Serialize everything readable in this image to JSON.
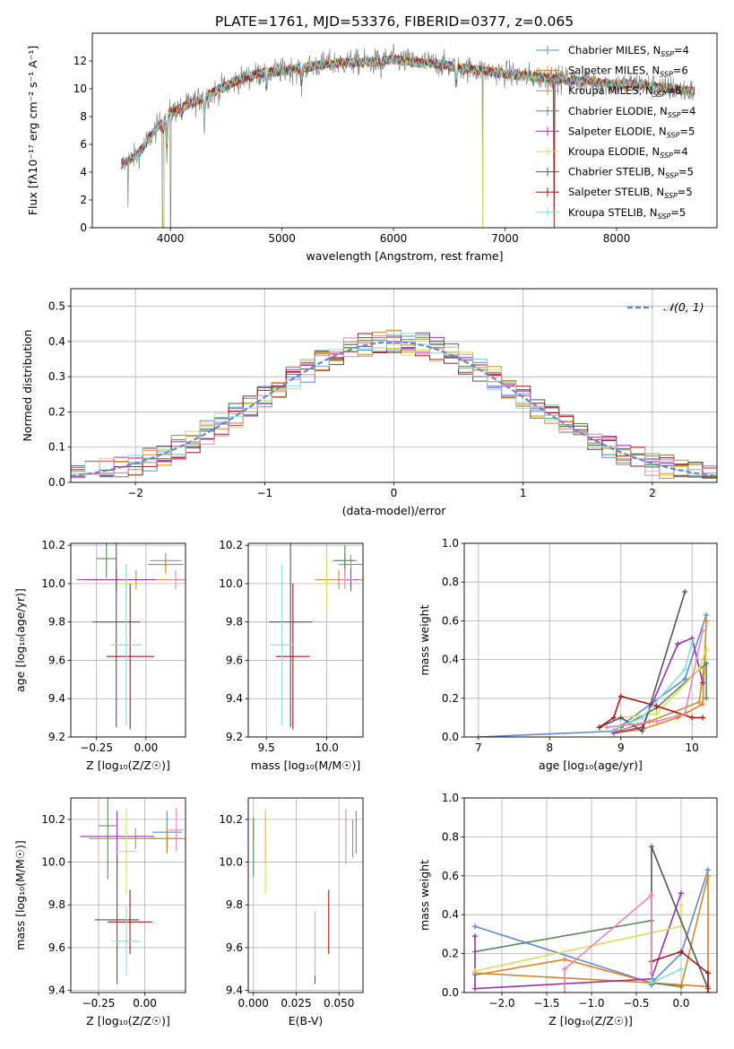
{
  "figure": {
    "title": "PLATE=1761, MJD=53376, FIBERID=0377, z=0.065"
  },
  "model_colors": {
    "Chabrier MILES": "#5b8bd6",
    "Salpeter MILES": "#e87e1c",
    "Kroupa MILES": "#d08a2a",
    "Chabrier ELODIE": "#5a8a5a",
    "Salpeter ELODIE": "#9b30b0",
    "Kroupa ELODIE": "#d4e050",
    "Chabrier STELIB": "#555555",
    "Salpeter STELIB": "#b01515",
    "Kroupa STELIB": "#80dfe0",
    "extra_pink": "#ee82b4"
  },
  "chart_data": [
    {
      "id": "spectrum",
      "type": "line",
      "xlabel": "wavelength [Angstrom, rest frame]",
      "ylabel": "Flux [fλ10⁻¹⁷ erg cm⁻² s⁻¹ A⁻¹]",
      "xlim": [
        3300,
        8900
      ],
      "ylim": [
        0,
        14
      ],
      "x_ticks": [
        4000,
        5000,
        6000,
        7000,
        8000
      ],
      "y_ticks": [
        0,
        2,
        4,
        6,
        8,
        10,
        12
      ],
      "grid": false,
      "legend_position": "top-right",
      "legend": [
        {
          "label": "Chabrier MILES, N",
          "sub": "SSP",
          "tail": "=4",
          "color": "#5b8bd6"
        },
        {
          "label": "Salpeter MILES, N",
          "sub": "SSP",
          "tail": "=6",
          "color": "#e87e1c"
        },
        {
          "label": "Kroupa MILES, N",
          "sub": "SSP",
          "tail": "=6",
          "color": "#d08a2a"
        },
        {
          "label": "Chabrier ELODIE, N",
          "sub": "SSP",
          "tail": "=4",
          "color": "#5a8a5a"
        },
        {
          "label": "Salpeter ELODIE, N",
          "sub": "SSP",
          "tail": "=5",
          "color": "#9b30b0"
        },
        {
          "label": "Kroupa ELODIE, N",
          "sub": "SSP",
          "tail": "=4",
          "color": "#d4e050"
        },
        {
          "label": "Chabrier STELIB, N",
          "sub": "SSP",
          "tail": "=5",
          "color": "#555555"
        },
        {
          "label": "Salpeter STELIB, N",
          "sub": "SSP",
          "tail": "=5",
          "color": "#b01515"
        },
        {
          "label": "Kroupa STELIB, N",
          "sub": "SSP",
          "tail": "=5",
          "color": "#80dfe0"
        }
      ],
      "continuum": [
        [
          3560,
          4.5
        ],
        [
          3700,
          5.2
        ],
        [
          3800,
          6.3
        ],
        [
          3900,
          7.4
        ],
        [
          4000,
          8.3
        ],
        [
          4200,
          9.0
        ],
        [
          4400,
          9.8
        ],
        [
          4600,
          10.6
        ],
        [
          4800,
          11.1
        ],
        [
          5000,
          11.3
        ],
        [
          5200,
          11.5
        ],
        [
          5400,
          11.8
        ],
        [
          5600,
          11.9
        ],
        [
          5800,
          11.9
        ],
        [
          6000,
          12.1
        ],
        [
          6200,
          11.9
        ],
        [
          6400,
          11.8
        ],
        [
          6600,
          11.5
        ],
        [
          6800,
          11.3
        ],
        [
          7000,
          11.1
        ],
        [
          7200,
          10.9
        ],
        [
          7400,
          10.8
        ],
        [
          7600,
          10.6
        ],
        [
          7800,
          10.5
        ],
        [
          8000,
          10.3
        ],
        [
          8200,
          10.3
        ],
        [
          8400,
          10.1
        ],
        [
          8600,
          9.9
        ],
        [
          8700,
          9.8
        ]
      ],
      "data_noise": 1.1,
      "model_noise": 0.35,
      "absorption_dips": [
        [
          3934,
          1.5
        ],
        [
          3969,
          3.2
        ],
        [
          4102,
          1.0
        ],
        [
          4305,
          2.3
        ],
        [
          4861,
          1.8
        ],
        [
          5175,
          1.5
        ],
        [
          5890,
          1.0
        ],
        [
          6563,
          1.5
        ]
      ],
      "spikes": [
        [
          3620,
          1.5
        ],
        [
          3930,
          0
        ],
        [
          4002,
          0
        ],
        [
          6800,
          0
        ],
        [
          7440,
          0
        ]
      ]
    },
    {
      "id": "residuals",
      "type": "histogram",
      "xlabel": "(data-model)/error",
      "ylabel": "Normed distribution",
      "xlim": [
        -2.5,
        2.5
      ],
      "ylim": [
        0,
        0.55
      ],
      "x_ticks": [
        -2,
        -1,
        0,
        1,
        2
      ],
      "y_ticks": [
        0.0,
        0.1,
        0.2,
        0.3,
        0.4,
        0.5
      ],
      "grid": true,
      "bin_width": 0.1111,
      "bin_start": -2.5,
      "gaussian_label": "𝒩(0, 1)",
      "gaussian_color": "#5b8bd6",
      "legend_position": "top-right"
    },
    {
      "id": "age-vs-Z",
      "type": "scatter",
      "xlabel": "Z [log₁₀(Z/Z☉)]",
      "ylabel": "age  [log₁₀(age/yr)]",
      "xlim": [
        -0.38,
        0.2
      ],
      "ylim": [
        9.2,
        10.21
      ],
      "x_ticks": [
        -0.25,
        0.0
      ],
      "y_ticks": [
        9.2,
        9.4,
        9.6,
        9.8,
        10.0,
        10.2
      ],
      "grid": true,
      "points": [
        {
          "m": "Chabrier MILES",
          "x": 0.1,
          "y": 10.12,
          "ex": 0.08,
          "ey": 0.04
        },
        {
          "m": "Salpeter MILES",
          "x": 0.1,
          "y": 10.1,
          "ex": 0.09,
          "ey": 0.05
        },
        {
          "m": "Kroupa MILES",
          "x": -0.05,
          "y": 10.02,
          "ex": 0.25,
          "ey": 0.05
        },
        {
          "m": "Chabrier ELODIE",
          "x": -0.2,
          "y": 10.13,
          "ex": 0.05,
          "ey": 0.1
        },
        {
          "m": "Salpeter ELODIE",
          "x": -0.15,
          "y": 10.02,
          "ex": 0.2,
          "ey": 0.06
        },
        {
          "m": "Kroupa ELODIE",
          "x": -0.1,
          "y": 10.0,
          "ex": 0.05,
          "ey": 0.1
        },
        {
          "m": "Chabrier STELIB",
          "x": -0.15,
          "y": 9.8,
          "ex": 0.12,
          "ey": 0.55
        },
        {
          "m": "Salpeter STELIB",
          "x": -0.08,
          "y": 9.62,
          "ex": 0.12,
          "ey": 0.38
        },
        {
          "m": "Kroupa STELIB",
          "x": -0.1,
          "y": 9.68,
          "ex": 0.08,
          "ey": 0.42
        },
        {
          "m": "extra_pink",
          "x": 0.15,
          "y": 10.02,
          "ex": 0.04,
          "ey": 0.05
        }
      ]
    },
    {
      "id": "age-vs-mass",
      "type": "scatter",
      "xlabel": "mass [log₁₀(M/M☉)]",
      "ylabel": "",
      "xlim": [
        9.35,
        10.3
      ],
      "ylim": [
        9.2,
        10.21
      ],
      "x_ticks": [
        9.5,
        10.0
      ],
      "y_ticks": [
        9.2,
        9.4,
        9.6,
        9.8,
        10.0,
        10.2
      ],
      "grid": true,
      "points": [
        {
          "m": "Chabrier MILES",
          "x": 10.15,
          "y": 10.12,
          "ex": 0.08,
          "ey": 0.04
        },
        {
          "m": "Salpeter MILES",
          "x": 10.2,
          "y": 10.1,
          "ex": 0.1,
          "ey": 0.05
        },
        {
          "m": "Kroupa MILES",
          "x": 10.1,
          "y": 10.02,
          "ex": 0.2,
          "ey": 0.05
        },
        {
          "m": "Chabrier ELODIE",
          "x": 10.15,
          "y": 10.12,
          "ex": 0.1,
          "ey": 0.08
        },
        {
          "m": "Salpeter ELODIE",
          "x": 10.2,
          "y": 10.02,
          "ex": 0.06,
          "ey": 0.06
        },
        {
          "m": "Kroupa ELODIE",
          "x": 10.0,
          "y": 10.0,
          "ex": 0.05,
          "ey": 0.14
        },
        {
          "m": "Chabrier STELIB",
          "x": 9.7,
          "y": 9.8,
          "ex": 0.18,
          "ey": 0.55
        },
        {
          "m": "Salpeter STELIB",
          "x": 9.72,
          "y": 9.62,
          "ex": 0.14,
          "ey": 0.38
        },
        {
          "m": "Kroupa STELIB",
          "x": 9.63,
          "y": 9.68,
          "ex": 0.1,
          "ey": 0.42
        },
        {
          "m": "extra_pink",
          "x": 10.15,
          "y": 10.02,
          "ex": 0.08,
          "ey": 0.05
        }
      ]
    },
    {
      "id": "weight-vs-age",
      "type": "line",
      "xlabel": "age  [log₁₀(age/yr)]",
      "ylabel": "mass weight",
      "xlim": [
        6.8,
        10.35
      ],
      "ylim": [
        0,
        1.0
      ],
      "x_ticks": [
        7,
        8,
        9,
        10
      ],
      "y_ticks": [
        0.0,
        0.2,
        0.4,
        0.6,
        0.8,
        1.0
      ],
      "grid": true,
      "series": [
        {
          "m": "Chabrier MILES",
          "x": [
            7.0,
            8.9,
            9.9,
            10.2
          ],
          "y": [
            0.0,
            0.03,
            0.3,
            0.63
          ]
        },
        {
          "m": "Salpeter MILES",
          "x": [
            8.9,
            9.3,
            9.8,
            10.15,
            10.2
          ],
          "y": [
            0.02,
            0.04,
            0.1,
            0.17,
            0.6
          ]
        },
        {
          "m": "Kroupa MILES",
          "x": [
            8.95,
            9.4,
            10.1,
            10.2
          ],
          "y": [
            0.03,
            0.08,
            0.18,
            0.45
          ]
        },
        {
          "m": "Chabrier ELODIE",
          "x": [
            9.0,
            9.5,
            10.2,
            10.2
          ],
          "y": [
            0.05,
            0.15,
            0.38,
            0.2
          ]
        },
        {
          "m": "Salpeter ELODIE",
          "x": [
            8.9,
            9.3,
            9.8,
            10.0,
            10.15
          ],
          "y": [
            0.02,
            0.05,
            0.48,
            0.51,
            0.28
          ]
        },
        {
          "m": "Kroupa ELODIE",
          "x": [
            9.0,
            9.5,
            10.1,
            10.2
          ],
          "y": [
            0.1,
            0.12,
            0.35,
            0.45
          ]
        },
        {
          "m": "Chabrier STELIB",
          "x": [
            8.7,
            9.0,
            9.3,
            9.9
          ],
          "y": [
            0.05,
            0.1,
            0.03,
            0.75
          ]
        },
        {
          "m": "Salpeter STELIB",
          "x": [
            8.7,
            8.9,
            9.0,
            9.5,
            10.0,
            10.15
          ],
          "y": [
            0.05,
            0.1,
            0.21,
            0.16,
            0.1,
            0.1
          ]
        },
        {
          "m": "Kroupa STELIB",
          "x": [
            8.9,
            9.3,
            9.9,
            10.0
          ],
          "y": [
            0.04,
            0.1,
            0.35,
            0.49
          ]
        },
        {
          "m": "extra_pink",
          "x": [
            8.8,
            9.5,
            9.9,
            10.15
          ],
          "y": [
            0.05,
            0.08,
            0.12,
            0.55
          ]
        }
      ]
    },
    {
      "id": "mass-vs-Z",
      "type": "scatter",
      "xlabel": "Z [log₁₀(Z/Z☉)]",
      "ylabel": "mass [log₁₀(M/M☉)]",
      "xlim": [
        -0.4,
        0.22
      ],
      "ylim": [
        9.39,
        10.3
      ],
      "x_ticks": [
        -0.25,
        0.0
      ],
      "y_ticks": [
        9.4,
        9.6,
        9.8,
        10.0,
        10.2
      ],
      "grid": true,
      "points": [
        {
          "m": "Chabrier MILES",
          "x": 0.12,
          "y": 10.14,
          "ex": 0.08,
          "ey": 0.1
        },
        {
          "m": "Salpeter MILES",
          "x": 0.12,
          "y": 10.11,
          "ex": 0.1,
          "ey": 0.06
        },
        {
          "m": "Kroupa MILES",
          "x": -0.05,
          "y": 10.11,
          "ex": 0.25,
          "ey": 0.05
        },
        {
          "m": "Chabrier ELODIE",
          "x": -0.2,
          "y": 10.17,
          "ex": 0.05,
          "ey": 0.25
        },
        {
          "m": "Salpeter ELODIE",
          "x": -0.15,
          "y": 10.12,
          "ex": 0.2,
          "ey": 0.12
        },
        {
          "m": "Kroupa ELODIE",
          "x": -0.1,
          "y": 10.05,
          "ex": 0.06,
          "ey": 0.2
        },
        {
          "m": "Chabrier STELIB",
          "x": -0.15,
          "y": 9.73,
          "ex": 0.12,
          "ey": 0.3
        },
        {
          "m": "Salpeter STELIB",
          "x": -0.08,
          "y": 9.72,
          "ex": 0.12,
          "ey": 0.15
        },
        {
          "m": "Kroupa STELIB",
          "x": -0.1,
          "y": 9.63,
          "ex": 0.08,
          "ey": 0.16
        },
        {
          "m": "extra_pink",
          "x": 0.17,
          "y": 10.15,
          "ex": 0.04,
          "ey": 0.1
        }
      ]
    },
    {
      "id": "mass-vs-ebv",
      "type": "scatter",
      "xlabel": "E(B-V)",
      "ylabel": "",
      "xlim": [
        -0.003,
        0.064
      ],
      "ylim": [
        9.39,
        10.3
      ],
      "x_ticks": [
        0.0,
        0.025,
        0.05
      ],
      "y_ticks": [
        9.4,
        9.6,
        9.8,
        10.0,
        10.2
      ],
      "grid": true,
      "points": [
        {
          "m": "Chabrier MILES",
          "x": 0.06,
          "y": 10.14,
          "ex": 0,
          "ey": 0.1
        },
        {
          "m": "Salpeter MILES",
          "x": 0.058,
          "y": 10.11,
          "ex": 0,
          "ey": 0.09
        },
        {
          "m": "Kroupa MILES",
          "x": 0.0,
          "y": 10.15,
          "ex": 0,
          "ey": 0.05
        },
        {
          "m": "Chabrier ELODIE",
          "x": 0.0,
          "y": 10.07,
          "ex": 0,
          "ey": 0.14
        },
        {
          "m": "Salpeter ELODIE",
          "x": 0.007,
          "y": 10.12,
          "ex": 0,
          "ey": 0.12
        },
        {
          "m": "Kroupa ELODIE",
          "x": 0.007,
          "y": 10.05,
          "ex": 0,
          "ey": 0.2
        },
        {
          "m": "Chabrier STELIB",
          "x": 0.036,
          "y": 9.6,
          "ex": 0,
          "ey": 0.17
        },
        {
          "m": "Salpeter STELIB",
          "x": 0.044,
          "y": 9.72,
          "ex": 0,
          "ey": 0.15
        },
        {
          "m": "Kroupa STELIB",
          "x": 0.036,
          "y": 9.62,
          "ex": 0,
          "ey": 0.15
        },
        {
          "m": "extra_pink",
          "x": 0.054,
          "y": 10.12,
          "ex": 0,
          "ey": 0.13
        }
      ]
    },
    {
      "id": "weight-vs-Z",
      "type": "line",
      "xlabel": "Z [log₁₀(Z/Z☉)]",
      "ylabel": "mass weight",
      "xlim": [
        -2.42,
        0.4
      ],
      "ylim": [
        0,
        1.0
      ],
      "x_ticks": [
        -2.0,
        -1.5,
        -1.0,
        -0.5,
        0.0
      ],
      "y_ticks": [
        0.0,
        0.2,
        0.4,
        0.6,
        0.8,
        1.0
      ],
      "grid": true,
      "series": [
        {
          "m": "Chabrier MILES",
          "x": [
            -2.3,
            -0.33,
            0.0,
            0.3
          ],
          "y": [
            0.34,
            0.05,
            0.2,
            0.63
          ]
        },
        {
          "m": "Salpeter MILES",
          "x": [
            -2.3,
            -1.3,
            -0.33,
            0.3,
            0.3
          ],
          "y": [
            0.09,
            0.17,
            0.05,
            0.03,
            0.6
          ]
        },
        {
          "m": "Kroupa MILES",
          "x": [
            -2.3,
            -0.33,
            0.0,
            0.3
          ],
          "y": [
            0.1,
            0.05,
            0.03,
            0.6
          ]
        },
        {
          "m": "Chabrier ELODIE",
          "x": [
            -2.3,
            -0.33,
            -0.33,
            0.0
          ],
          "y": [
            0.21,
            0.37,
            0.05,
            0.03
          ]
        },
        {
          "m": "Salpeter ELODIE",
          "x": [
            -2.3,
            -2.3,
            -0.33,
            0.0
          ],
          "y": [
            0.29,
            0.02,
            0.07,
            0.51
          ]
        },
        {
          "m": "Kroupa ELODIE",
          "x": [
            -2.3,
            0.0,
            0.0
          ],
          "y": [
            0.11,
            0.34,
            0.45
          ]
        },
        {
          "m": "Chabrier STELIB",
          "x": [
            -0.33,
            -0.33,
            0.3
          ],
          "y": [
            0.04,
            0.75,
            0.02
          ]
        },
        {
          "m": "Salpeter STELIB",
          "x": [
            -0.33,
            0.0,
            0.3,
            0.3
          ],
          "y": [
            0.16,
            0.21,
            0.1,
            0.0
          ]
        },
        {
          "m": "Kroupa STELIB",
          "x": [
            -0.33,
            -0.33,
            0.0
          ],
          "y": [
            0.5,
            0.05,
            0.12
          ]
        },
        {
          "m": "extra_pink",
          "x": [
            -1.3,
            -1.3,
            -0.33,
            -0.33
          ],
          "y": [
            0.0,
            0.12,
            0.5,
            0.1
          ]
        }
      ]
    }
  ]
}
